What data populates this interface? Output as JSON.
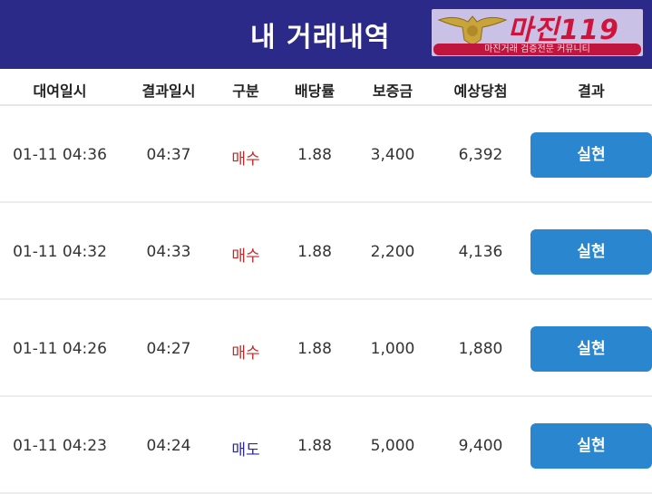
{
  "header": {
    "title": "내 거래내역",
    "logo": {
      "name": "마진119",
      "tagline": "마진거래 검증전문 커뮤니티"
    },
    "bg_color": "#2c2a88"
  },
  "columns": [
    "대여일시",
    "결과일시",
    "구분",
    "배당률",
    "보증금",
    "예상당첨",
    "결과"
  ],
  "rows": [
    {
      "rent_time": "01-11 04:36",
      "result_time": "04:37",
      "type": "매수",
      "type_kind": "buy",
      "odds": "1.88",
      "deposit": "3,400",
      "expected": "6,392",
      "result": "실현"
    },
    {
      "rent_time": "01-11 04:32",
      "result_time": "04:33",
      "type": "매수",
      "type_kind": "buy",
      "odds": "1.88",
      "deposit": "2,200",
      "expected": "4,136",
      "result": "실현"
    },
    {
      "rent_time": "01-11 04:26",
      "result_time": "04:27",
      "type": "매수",
      "type_kind": "buy",
      "odds": "1.88",
      "deposit": "1,000",
      "expected": "1,880",
      "result": "실현"
    },
    {
      "rent_time": "01-11 04:23",
      "result_time": "04:24",
      "type": "매도",
      "type_kind": "sell",
      "odds": "1.88",
      "deposit": "5,000",
      "expected": "9,400",
      "result": "실현"
    }
  ],
  "colors": {
    "buy": "#c62828",
    "sell": "#2a2a9a",
    "button": "#2a86cf"
  }
}
